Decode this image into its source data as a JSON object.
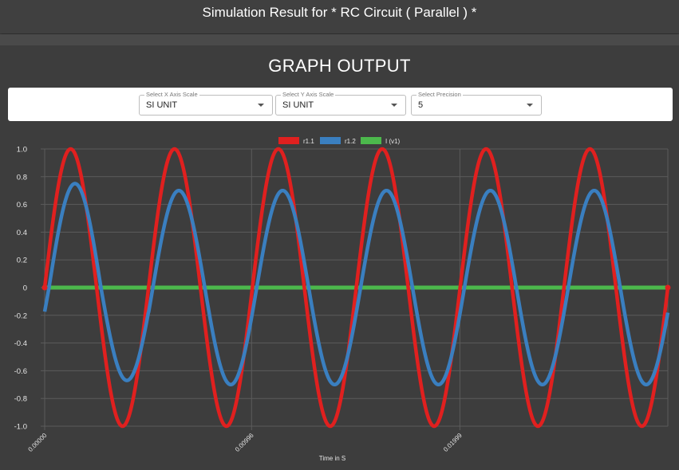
{
  "header": {
    "title": "Simulation Result for * RC Circuit ( Parallel ) *"
  },
  "page": {
    "heading": "GRAPH OUTPUT"
  },
  "controls": {
    "x_scale": {
      "label": "Select X Axis Scale",
      "value": "SI UNIT"
    },
    "y_scale": {
      "label": "Select Y Axis Scale",
      "value": "SI UNIT"
    },
    "precision": {
      "label": "Select Precision",
      "value": "5"
    }
  },
  "colors": {
    "r11": "#e0201f",
    "r12": "#3a7fc0",
    "iv1": "#4cb84c",
    "background": "#3d3d3d",
    "grid": "#5c5c5c"
  },
  "chart_data": {
    "type": "line",
    "title": "",
    "xlabel": "Time in S",
    "ylabel": "",
    "x_tick_labels": [
      "0.00000",
      "0.00996",
      "0.01999"
    ],
    "y_ticks": [
      1.0,
      0.8,
      0.6,
      0.4,
      0.2,
      0,
      -0.2,
      -0.4,
      -0.6,
      -0.8,
      -1.0
    ],
    "y_tick_labels": [
      "1.0",
      "0.8",
      "0.6",
      "0.4",
      "0.2",
      "0",
      "-0.2",
      "-0.4",
      "-0.6",
      "-0.8",
      "-1.0"
    ],
    "xlim": [
      0,
      0.03
    ],
    "ylim": [
      -1.0,
      1.0
    ],
    "legend_position": "top",
    "grid": true,
    "series": [
      {
        "name": "r1.1",
        "color": "#e0201f",
        "amplitude": 1.0,
        "frequency_hz": 200,
        "phase_deg": 0
      },
      {
        "name": "r1.2",
        "color": "#3a7fc0",
        "amplitude": 0.7,
        "frequency_hz": 200,
        "phase_deg": -15,
        "first_peak": 0.75,
        "first_trough": -0.67
      },
      {
        "name": "I (v1)",
        "color": "#4cb84c",
        "amplitude": 0.0,
        "frequency_hz": 200,
        "phase_deg": 0
      }
    ]
  }
}
